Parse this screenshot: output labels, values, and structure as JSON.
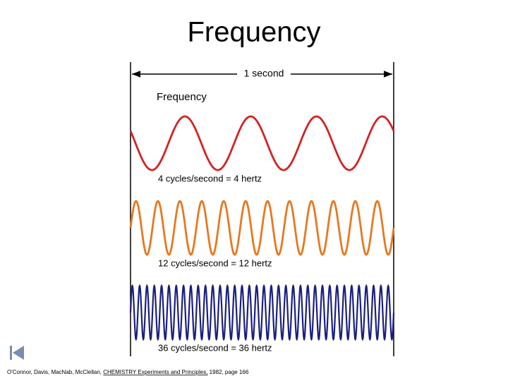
{
  "title": "Frequency",
  "span_label": "1 second",
  "panel_label": "Frequency",
  "waves": [
    {
      "label": "4 cycles/second  =  4 hertz",
      "color": "#d42222"
    },
    {
      "label": "12 cycles/second  =  12 hertz",
      "color": "#e8781e"
    },
    {
      "label": "36 cycles/second  =  36 hertz",
      "color": "#1b1f7e"
    }
  ],
  "citation": {
    "authors": "O'Connor, Davis, MacNab, McClellan, ",
    "book": "CHEMISTRY Experiments and Principles,",
    "details": " 1982, page 166"
  }
}
